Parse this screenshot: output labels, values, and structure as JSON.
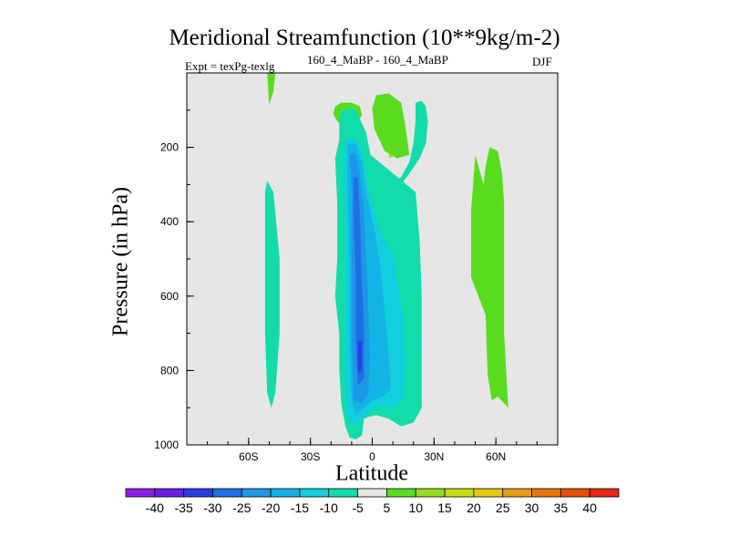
{
  "chart_data": {
    "type": "heatmap",
    "title": "Meridional Streamfunction (10**9kg/m-2)",
    "subtitle_left": "Expt = texPg-texlg",
    "subtitle_center": "160_4_MaBP - 160_4_MaBP",
    "subtitle_right": "DJF",
    "xlabel": "Latitude",
    "ylabel": "Pressure (in hPa)",
    "xlim": [
      -90,
      90
    ],
    "ylim": [
      1000,
      0
    ],
    "x_ticks": [
      {
        "value": -60,
        "label": "60S"
      },
      {
        "value": -30,
        "label": "30S"
      },
      {
        "value": 0,
        "label": "0"
      },
      {
        "value": 30,
        "label": "30N"
      },
      {
        "value": 60,
        "label": "60N"
      }
    ],
    "y_ticks": [
      {
        "value": 200,
        "label": "200"
      },
      {
        "value": 400,
        "label": "400"
      },
      {
        "value": 600,
        "label": "600"
      },
      {
        "value": 800,
        "label": "800"
      },
      {
        "value": 1000,
        "label": "1000"
      }
    ],
    "background_color": "#e6e6e6",
    "colorbar": {
      "labels": [
        "-40",
        "-35",
        "-30",
        "-25",
        "-20",
        "-15",
        "-10",
        "-5",
        "5",
        "10",
        "15",
        "20",
        "25",
        "30",
        "35",
        "40"
      ],
      "colors": [
        "#8a1ee6",
        "#6a1ee6",
        "#2a3ce6",
        "#1e6ee6",
        "#1e96e6",
        "#12b4e6",
        "#12cede",
        "#12dcaa",
        "#e6e6e6",
        "#5adc1e",
        "#96dc1e",
        "#c8dc14",
        "#e6c814",
        "#e6a014",
        "#e6780a",
        "#e6500a",
        "#e62814"
      ]
    },
    "regions": [
      {
        "name": "sh-high-lat-positive-strip",
        "level": 5,
        "points": [
          [
            -51,
            0
          ],
          [
            -47,
            0
          ],
          [
            -48,
            50
          ],
          [
            -50,
            85
          ]
        ]
      },
      {
        "name": "sh-midlat-negative-cell",
        "level": -5,
        "points": [
          [
            -51,
            290
          ],
          [
            -48,
            320
          ],
          [
            -45,
            500
          ],
          [
            -45,
            700
          ],
          [
            -47,
            860
          ],
          [
            -49,
            900
          ],
          [
            -51,
            860
          ],
          [
            -52,
            700
          ],
          [
            -52,
            500
          ],
          [
            -52,
            320
          ]
        ]
      },
      {
        "name": "upper-positive-cell-west",
        "level": 5,
        "points": [
          [
            -18,
            90
          ],
          [
            -15,
            80
          ],
          [
            -10,
            80
          ],
          [
            -6,
            90
          ],
          [
            -5,
            115
          ],
          [
            -8,
            135
          ],
          [
            -13,
            145
          ],
          [
            -17,
            130
          ],
          [
            -19,
            110
          ]
        ]
      },
      {
        "name": "upper-positive-cell-west-core",
        "level": 10,
        "points": [
          [
            -14,
            100
          ],
          [
            -11,
            98
          ],
          [
            -10,
            110
          ],
          [
            -12,
            118
          ],
          [
            -15,
            112
          ]
        ]
      },
      {
        "name": "upper-positive-cell-east",
        "level": 5,
        "points": [
          [
            0,
            95
          ],
          [
            2,
            60
          ],
          [
            8,
            55
          ],
          [
            14,
            80
          ],
          [
            16,
            140
          ],
          [
            18,
            220
          ],
          [
            12,
            230
          ],
          [
            6,
            210
          ],
          [
            1,
            150
          ]
        ]
      },
      {
        "name": "upper-positive-cell-east-core",
        "level": 10,
        "points": [
          [
            8,
            220
          ],
          [
            10,
            218
          ],
          [
            10,
            226
          ],
          [
            8,
            228
          ]
        ]
      },
      {
        "name": "tropical-negative-envelope",
        "level": -5,
        "points": [
          [
            -14,
            160
          ],
          [
            -10,
            180
          ],
          [
            -6,
            280
          ],
          [
            2,
            310
          ],
          [
            10,
            310
          ],
          [
            14,
            300
          ],
          [
            18,
            270
          ],
          [
            23,
            230
          ],
          [
            26,
            190
          ],
          [
            27,
            130
          ],
          [
            26,
            90
          ],
          [
            24,
            75
          ],
          [
            21,
            80
          ],
          [
            21,
            130
          ],
          [
            20,
            190
          ],
          [
            18,
            240
          ],
          [
            14,
            280
          ],
          [
            8,
            300
          ],
          [
            2,
            300
          ],
          [
            -3,
            160
          ],
          [
            -8,
            100
          ],
          [
            -10,
            95
          ],
          [
            -14,
            98
          ],
          [
            -16,
            120
          ],
          [
            -16,
            180
          ],
          [
            -18,
            230
          ],
          [
            -17,
            350
          ],
          [
            -17,
            500
          ],
          [
            -18,
            600
          ],
          [
            -16,
            700
          ],
          [
            -16,
            800
          ],
          [
            -15,
            890
          ],
          [
            -13,
            950
          ],
          [
            -11,
            980
          ],
          [
            -8,
            985
          ],
          [
            -5,
            975
          ],
          [
            -4,
            930
          ],
          [
            -2,
            925
          ],
          [
            2,
            920
          ],
          [
            8,
            930
          ],
          [
            14,
            950
          ],
          [
            20,
            940
          ],
          [
            24,
            900
          ],
          [
            24,
            600
          ],
          [
            23,
            450
          ],
          [
            21,
            320
          ]
        ]
      },
      {
        "name": "tropical-negative-10",
        "level": -10,
        "points": [
          [
            -13,
            180
          ],
          [
            -9,
            175
          ],
          [
            -5,
            210
          ],
          [
            -3,
            280
          ],
          [
            -1,
            330
          ],
          [
            4,
            430
          ],
          [
            10,
            480
          ],
          [
            12,
            560
          ],
          [
            15,
            650
          ],
          [
            16,
            780
          ],
          [
            15,
            880
          ],
          [
            10,
            900
          ],
          [
            3,
            895
          ],
          [
            -3,
            920
          ],
          [
            -7,
            940
          ],
          [
            -10,
            950
          ],
          [
            -12,
            920
          ],
          [
            -13,
            800
          ],
          [
            -13,
            600
          ],
          [
            -13,
            400
          ],
          [
            -14,
            250
          ]
        ]
      },
      {
        "name": "tropical-negative-15",
        "level": -15,
        "points": [
          [
            -12,
            190
          ],
          [
            -8,
            190
          ],
          [
            -5,
            240
          ],
          [
            -3,
            320
          ],
          [
            1,
            420
          ],
          [
            4,
            520
          ],
          [
            6,
            640
          ],
          [
            8,
            760
          ],
          [
            9,
            850
          ],
          [
            5,
            870
          ],
          [
            0,
            880
          ],
          [
            -4,
            900
          ],
          [
            -8,
            920
          ],
          [
            -10,
            880
          ],
          [
            -11,
            700
          ],
          [
            -11,
            500
          ],
          [
            -12,
            300
          ]
        ]
      },
      {
        "name": "tropical-negative-20",
        "level": -20,
        "points": [
          [
            -11,
            220
          ],
          [
            -8,
            215
          ],
          [
            -6,
            270
          ],
          [
            -4,
            370
          ],
          [
            -3,
            500
          ],
          [
            -2,
            620
          ],
          [
            -1,
            760
          ],
          [
            -2,
            860
          ],
          [
            -5,
            890
          ],
          [
            -9,
            880
          ],
          [
            -10,
            700
          ],
          [
            -10,
            500
          ],
          [
            -10,
            320
          ]
        ]
      },
      {
        "name": "tropical-negative-25",
        "level": -25,
        "points": [
          [
            -9,
            280
          ],
          [
            -7,
            280
          ],
          [
            -6,
            380
          ],
          [
            -5,
            560
          ],
          [
            -4,
            700
          ],
          [
            -4,
            820
          ],
          [
            -7,
            840
          ],
          [
            -8,
            720
          ],
          [
            -8,
            560
          ],
          [
            -9,
            400
          ]
        ]
      },
      {
        "name": "tropical-negative-30",
        "level": -30,
        "points": [
          [
            -7,
            720
          ],
          [
            -5,
            720
          ],
          [
            -5,
            790
          ],
          [
            -6,
            810
          ],
          [
            -7,
            790
          ]
        ]
      },
      {
        "name": "nh-midlat-positive-cell",
        "level": 5,
        "points": [
          [
            57,
            200
          ],
          [
            61,
            210
          ],
          [
            63,
            270
          ],
          [
            64,
            350
          ],
          [
            64,
            500
          ],
          [
            64,
            700
          ],
          [
            66,
            900
          ],
          [
            61,
            870
          ],
          [
            58,
            880
          ],
          [
            56,
            810
          ],
          [
            55,
            650
          ],
          [
            48,
            550
          ],
          [
            48,
            370
          ],
          [
            50,
            220
          ],
          [
            52,
            260
          ],
          [
            54,
            300
          ],
          [
            55,
            250
          ]
        ]
      }
    ]
  }
}
